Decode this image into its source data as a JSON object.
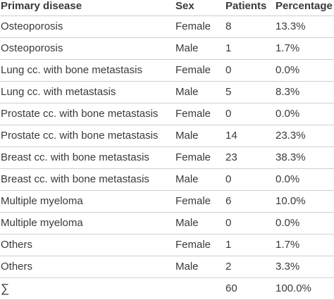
{
  "table": {
    "headers": [
      "Primary disease",
      "Sex",
      "Patients",
      "Percentage"
    ],
    "rows": [
      [
        "Osteoporosis",
        "Female",
        "8",
        "13.3%"
      ],
      [
        "Osteoporosis",
        "Male",
        "1",
        "1.7%"
      ],
      [
        "Lung cc. with bone metastasis",
        "Female",
        "0",
        "0.0%"
      ],
      [
        "Lung cc. with metastasis",
        "Male",
        "5",
        "8.3%"
      ],
      [
        "Prostate cc. with bone metastasis",
        "Female",
        "0",
        "0.0%"
      ],
      [
        "Prostate cc. with bone metastasis",
        "Male",
        "14",
        "23.3%"
      ],
      [
        "Breast cc. with bone metastasis",
        "Female",
        "23",
        "38.3%"
      ],
      [
        "Breast cc. with bone metastasis",
        "Male",
        "0",
        "0.0%"
      ],
      [
        "Multiple myeloma",
        "Female",
        "6",
        "10.0%"
      ],
      [
        "Multiple myeloma",
        "Male",
        "0",
        "0.0%"
      ],
      [
        "Others",
        "Female",
        "1",
        "1.7%"
      ],
      [
        "Others",
        "Male",
        "2",
        "3.3%"
      ]
    ],
    "total": {
      "symbol": "∑",
      "sex": "",
      "patients": "60",
      "percentage": "100.0%"
    }
  }
}
